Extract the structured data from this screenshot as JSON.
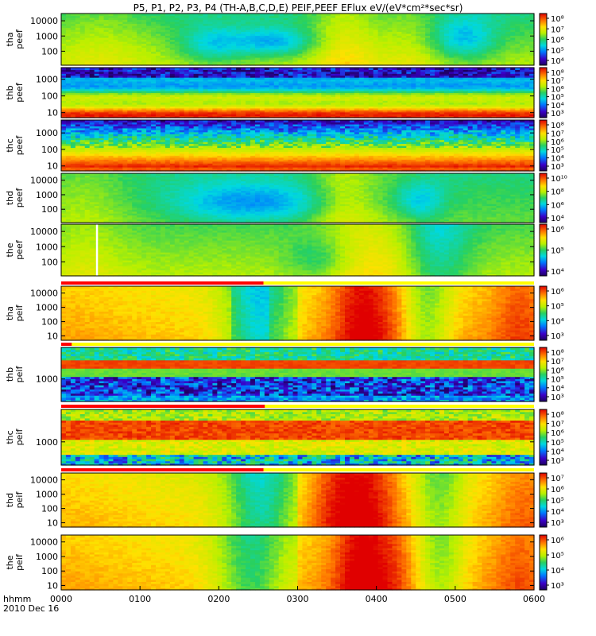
{
  "title": "P5, P1, P2, P3, P4 (TH-A,B,C,D,E) PEIF,PEEF EFlux eV/(eV*cm²*sec*sr)",
  "time_axis": {
    "label": "hhmm",
    "date": "2010 Dec 16",
    "ticks": [
      "0000",
      "0100",
      "0200",
      "0300",
      "0400",
      "0500",
      "0600"
    ],
    "range_minutes": [
      0,
      360
    ]
  },
  "chart_data": [
    {
      "type": "heatmap",
      "probe": "tha",
      "product": "peef",
      "label": [
        "tha",
        "peef"
      ],
      "y_ticks": [
        "10000",
        "1000",
        "100"
      ],
      "ylim_ev": [
        12,
        30000
      ],
      "cbar_ticks": [
        "10⁸",
        "10⁷",
        "10⁶",
        "10⁵",
        "10⁴"
      ],
      "cbar_range": [
        4,
        8.3
      ],
      "seed": 11
    },
    {
      "type": "heatmap",
      "probe": "thb",
      "product": "peef",
      "label": [
        "thb",
        "peef"
      ],
      "y_ticks": [
        "1000",
        "100",
        "10"
      ],
      "ylim_ev": [
        5,
        5000
      ],
      "cbar_ticks": [
        "10⁸",
        "10⁷",
        "10⁶",
        "10⁵",
        "10⁴",
        "10³"
      ],
      "cbar_range": [
        3,
        8.3
      ],
      "seed": 23
    },
    {
      "type": "heatmap",
      "probe": "thc",
      "product": "peef",
      "label": [
        "thc",
        "peef"
      ],
      "y_ticks": [
        "1000",
        "100",
        "10"
      ],
      "ylim_ev": [
        5,
        6000
      ],
      "cbar_ticks": [
        "10⁸",
        "10⁷",
        "10⁶",
        "10⁵",
        "10⁴",
        "10³"
      ],
      "cbar_range": [
        3,
        8.3
      ],
      "seed": 37
    },
    {
      "type": "heatmap",
      "probe": "thd",
      "product": "peef",
      "label": [
        "thd",
        "peef"
      ],
      "y_ticks": [
        "10000",
        "1000",
        "100"
      ],
      "ylim_ev": [
        12,
        30000
      ],
      "cbar_ticks": [
        "10¹⁰",
        "10⁸",
        "10⁶",
        "10⁴"
      ],
      "cbar_range": [
        3,
        10.3
      ],
      "seed": 41
    },
    {
      "type": "heatmap",
      "probe": "the",
      "product": "peef",
      "label": [
        "the",
        "peef"
      ],
      "y_ticks": [
        "10000",
        "1000",
        "100"
      ],
      "ylim_ev": [
        12,
        30000
      ],
      "cbar_ticks": [
        "10⁶",
        "10⁵",
        "10⁴"
      ],
      "cbar_range": [
        3.5,
        6.6
      ],
      "gap_minutes": [
        26.5,
        28
      ],
      "seed": 53
    },
    {
      "type": "heatmap",
      "probe": "tha",
      "product": "peif",
      "label": [
        "tha",
        "peif"
      ],
      "y_ticks": [
        "10000",
        "1000",
        "100",
        "10"
      ],
      "ylim_ev": [
        5,
        30000
      ],
      "cbar_ticks": [
        "10⁶",
        "10⁵",
        "10⁴",
        "10³"
      ],
      "cbar_range": [
        2.8,
        6.5
      ],
      "mode_bar_minutes": [
        0,
        154
      ],
      "seed": 67
    },
    {
      "type": "heatmap",
      "probe": "thb",
      "product": "peif",
      "label": [
        "thb",
        "peif"
      ],
      "y_ticks": [
        "1000"
      ],
      "ylim_ev": [
        100,
        25000
      ],
      "cbar_ticks": [
        "10⁸",
        "10⁷",
        "10⁶",
        "10⁵",
        "10⁴",
        "10³"
      ],
      "cbar_range": [
        2.8,
        8.3
      ],
      "mode_bar_minutes": [
        0,
        8
      ],
      "seed": 71
    },
    {
      "type": "heatmap",
      "probe": "thc",
      "product": "peif",
      "label": [
        "thc",
        "peif"
      ],
      "y_ticks": [
        "1000"
      ],
      "ylim_ev": [
        100,
        25000
      ],
      "cbar_ticks": [
        "10⁸",
        "10⁷",
        "10⁶",
        "10⁵",
        "10⁴",
        "10³"
      ],
      "cbar_range": [
        2.8,
        8.3
      ],
      "mode_bar_minutes": [
        0,
        155
      ],
      "seed": 83
    },
    {
      "type": "heatmap",
      "probe": "thd",
      "product": "peif",
      "label": [
        "thd",
        "peif"
      ],
      "y_ticks": [
        "10000",
        "1000",
        "100",
        "10"
      ],
      "ylim_ev": [
        5,
        30000
      ],
      "cbar_ticks": [
        "10⁷",
        "10⁶",
        "10⁵",
        "10⁴",
        "10³"
      ],
      "cbar_range": [
        2.8,
        7.3
      ],
      "mode_bar_minutes": [
        0,
        154
      ],
      "seed": 97
    },
    {
      "type": "heatmap",
      "probe": "the",
      "product": "peif",
      "label": [
        "the",
        "peif"
      ],
      "y_ticks": [
        "10000",
        "1000",
        "100",
        "10"
      ],
      "ylim_ev": [
        5,
        30000
      ],
      "cbar_ticks": [
        "10⁶",
        "10⁵",
        "10⁴",
        "10³"
      ],
      "cbar_range": [
        2.8,
        6.5
      ],
      "seed": 101
    }
  ]
}
